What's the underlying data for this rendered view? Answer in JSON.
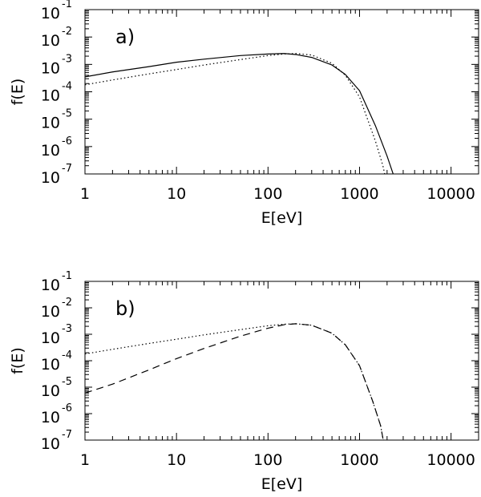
{
  "chart_data": [
    {
      "type": "line",
      "panel_label": "a)",
      "xlabel": "E[eV]",
      "ylabel": "f(E)",
      "xscale": "log",
      "yscale": "log",
      "xlim": [
        1,
        20000
      ],
      "ylim": [
        1e-07,
        0.1
      ],
      "x_ticks": [
        "1",
        "10",
        "100",
        "1000",
        "10000"
      ],
      "y_ticks": [
        {
          "base": "10",
          "exp": "-1"
        },
        {
          "base": "10",
          "exp": "-2"
        },
        {
          "base": "10",
          "exp": "-3"
        },
        {
          "base": "10",
          "exp": "-4"
        },
        {
          "base": "10",
          "exp": "-5"
        },
        {
          "base": "10",
          "exp": "-6"
        },
        {
          "base": "10",
          "exp": "-7"
        }
      ],
      "grid": false,
      "series": [
        {
          "style": "solid",
          "x": [
            1,
            2,
            5,
            10,
            20,
            50,
            100,
            150,
            200,
            300,
            500,
            700,
            1000,
            1500,
            2000,
            2500
          ],
          "y": [
            0.00035,
            0.00053,
            0.00083,
            0.0012,
            0.00155,
            0.0021,
            0.0024,
            0.0025,
            0.0023,
            0.0018,
            0.00095,
            0.00043,
            0.00011,
            5.5e-06,
            4.5e-07,
            5e-08
          ]
        },
        {
          "style": "dotted",
          "x": [
            1,
            2,
            5,
            10,
            20,
            50,
            100,
            150,
            200,
            300,
            500,
            700,
            1000,
            1500,
            1800,
            2000
          ],
          "y": [
            0.00018,
            0.00027,
            0.00045,
            0.00065,
            0.00095,
            0.0015,
            0.0021,
            0.0024,
            0.0025,
            0.0022,
            0.0011,
            0.0004,
            6.5e-05,
            1.5e-06,
            2e-07,
            4e-08
          ]
        }
      ]
    },
    {
      "type": "line",
      "panel_label": "b)",
      "xlabel": "E[eV]",
      "ylabel": "f(E)",
      "xscale": "log",
      "yscale": "log",
      "xlim": [
        1,
        20000
      ],
      "ylim": [
        1e-07,
        0.1
      ],
      "x_ticks": [
        "1",
        "10",
        "100",
        "1000",
        "10000"
      ],
      "y_ticks": [
        {
          "base": "10",
          "exp": "-1"
        },
        {
          "base": "10",
          "exp": "-2"
        },
        {
          "base": "10",
          "exp": "-3"
        },
        {
          "base": "10",
          "exp": "-4"
        },
        {
          "base": "10",
          "exp": "-5"
        },
        {
          "base": "10",
          "exp": "-6"
        },
        {
          "base": "10",
          "exp": "-7"
        }
      ],
      "grid": false,
      "series": [
        {
          "style": "dotted",
          "x": [
            1,
            2,
            5,
            10,
            20,
            50,
            100,
            150,
            200,
            300,
            500,
            700,
            1000,
            1400,
            1700,
            1850
          ],
          "y": [
            0.00018,
            0.00027,
            0.00045,
            0.00065,
            0.00095,
            0.0015,
            0.0021,
            0.0024,
            0.0025,
            0.0022,
            0.0011,
            0.0004,
            6.5e-05,
            2.8e-06,
            3.5e-07,
            7e-08
          ]
        },
        {
          "style": "dashed",
          "x": [
            1,
            2,
            5,
            10,
            20,
            50,
            100,
            150,
            200,
            300,
            500,
            700,
            1000,
            1400,
            1700,
            1850
          ],
          "y": [
            6e-06,
            1.3e-05,
            4.5e-05,
            0.00012,
            0.00029,
            0.00085,
            0.0017,
            0.0023,
            0.0025,
            0.0022,
            0.0011,
            0.0004,
            6.5e-05,
            2.8e-06,
            3.5e-07,
            7e-08
          ]
        }
      ]
    }
  ]
}
